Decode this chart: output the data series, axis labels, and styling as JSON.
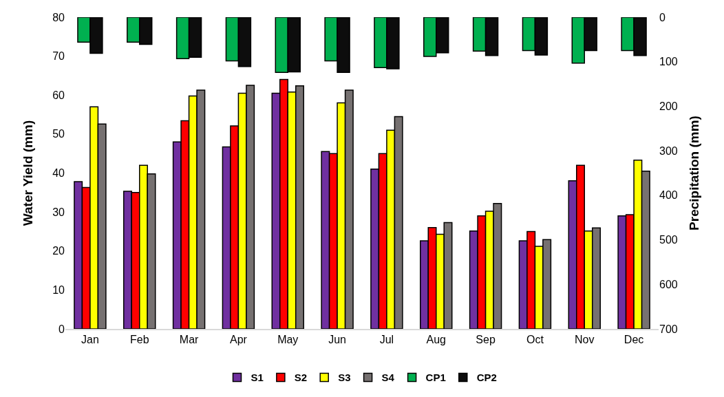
{
  "chart_data": {
    "type": "bar",
    "ylabel": "Water Yield (mm)",
    "y2label": "Precipitation (mm)",
    "categories": [
      "Jan",
      "Feb",
      "Mar",
      "Apr",
      "May",
      "Jun",
      "Jul",
      "Aug",
      "Sep",
      "Oct",
      "Nov",
      "Dec"
    ],
    "series": [
      {
        "name": "S1",
        "color": "#7030a0",
        "values": [
          37.8,
          35.3,
          48,
          46.7,
          60.5,
          45.5,
          41,
          22.6,
          25.1,
          22.6,
          38,
          29
        ]
      },
      {
        "name": "S2",
        "color": "#ff0000",
        "values": [
          36.3,
          35,
          53.4,
          52.1,
          64,
          45,
          45,
          26,
          29,
          25,
          42,
          29.3
        ]
      },
      {
        "name": "S3",
        "color": "#ffff00",
        "values": [
          57,
          42,
          59.8,
          60.5,
          60.8,
          58,
          51,
          24.3,
          30.2,
          21.2,
          25.1,
          43.3
        ]
      },
      {
        "name": "S4",
        "color": "#767171",
        "values": [
          52.6,
          39.8,
          61.3,
          62.5,
          62.4,
          61.3,
          54.5,
          27.3,
          32.2,
          22.9,
          25.9,
          40.5
        ]
      },
      {
        "name": "CP1",
        "color": "#00b050",
        "axis": "y2",
        "values": [
          56,
          56,
          93,
          98,
          124,
          98,
          113,
          88,
          76,
          75,
          103,
          75
        ]
      },
      {
        "name": "CP2",
        "color": "#0d0d0d",
        "axis": "y2",
        "values": [
          81,
          61,
          90,
          111,
          123,
          124,
          116,
          80,
          86,
          85,
          75,
          86
        ]
      }
    ],
    "ylim": [
      0,
      80
    ],
    "yticks": [
      0,
      10,
      20,
      30,
      40,
      50,
      60,
      70,
      80
    ],
    "y2lim": [
      700,
      0
    ],
    "y2ticks": [
      0,
      100,
      200,
      300,
      400,
      500,
      600,
      700
    ],
    "grid": false,
    "legend": "bottom"
  }
}
